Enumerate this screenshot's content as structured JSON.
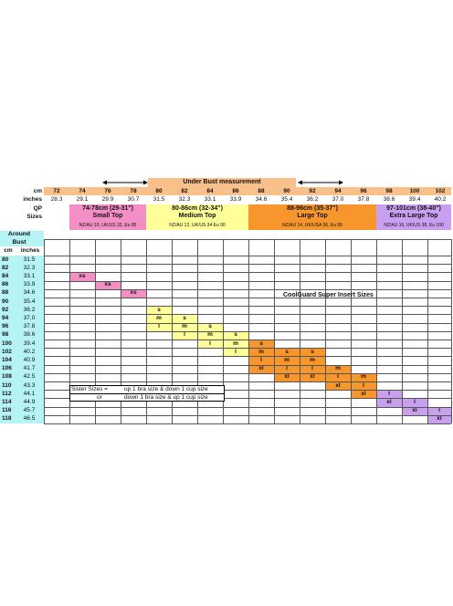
{
  "header": {
    "under_bust_title": "Under Bust measurement",
    "cm_label": "cm",
    "inches_label": "inches",
    "qp_label": "QP",
    "sizes_label": "Sizes"
  },
  "columns": {
    "cm": [
      "72",
      "74",
      "76",
      "78",
      "80",
      "82",
      "84",
      "86",
      "88",
      "90",
      "92",
      "94",
      "96",
      "98",
      "100",
      "102"
    ],
    "inches": [
      "28.3",
      "29.1",
      "29.9",
      "30.7",
      "31.5",
      "32.3",
      "33.1",
      "33.9",
      "34.6",
      "35.4",
      "36.2",
      "37.0",
      "37.8",
      "38.6",
      "39.4",
      "40.2"
    ]
  },
  "size_groups": [
    {
      "range": "74-78cm (29-31\")",
      "name": "Small Top",
      "conv": "NZ/AU 10, UK/US 32, Eu 85",
      "color": "#f48fc5"
    },
    {
      "range": "80-86cm (32-34\")",
      "name": "Medium Top",
      "conv": "NZ/AU 12, UK/US 34 Eu 90",
      "color": "#ffff99"
    },
    {
      "range": "88-96cm (35-37\")",
      "name": "Large Top",
      "conv": "NZ/AU 14, UK/USA 36, Eu 95",
      "color": "#f7962d"
    },
    {
      "range": "97-101cm (38-40\")",
      "name": "Extra Large Top",
      "conv": "NZ/AU 16, UK/US 38, Eu 100",
      "color": "#c9a0f0"
    }
  ],
  "around_bust": {
    "title": "Around Bust",
    "cm_label": "cm",
    "inches_label": "inches",
    "rows": [
      {
        "cm": "80",
        "in": "31.5"
      },
      {
        "cm": "82",
        "in": "32.3"
      },
      {
        "cm": "84",
        "in": "33.1"
      },
      {
        "cm": "86",
        "in": "33.9"
      },
      {
        "cm": "88",
        "in": "34.6"
      },
      {
        "cm": "90",
        "in": "35.4"
      },
      {
        "cm": "92",
        "in": "36.2"
      },
      {
        "cm": "94",
        "in": "37.0"
      },
      {
        "cm": "96",
        "in": "37.8"
      },
      {
        "cm": "98",
        "in": "38.6"
      },
      {
        "cm": "100",
        "in": "39.4"
      },
      {
        "cm": "102",
        "in": "40.2"
      },
      {
        "cm": "104",
        "in": "40.9"
      },
      {
        "cm": "106",
        "in": "41.7"
      },
      {
        "cm": "108",
        "in": "42.5"
      },
      {
        "cm": "110",
        "in": "43.3"
      },
      {
        "cm": "112",
        "in": "44.1"
      },
      {
        "cm": "114",
        "in": "44.9"
      },
      {
        "cm": "116",
        "in": "45.7"
      },
      {
        "cm": "118",
        "in": "46.5"
      }
    ]
  },
  "insert_title": "CoolGuard Super Insert Sizes",
  "colors": {
    "orange_header": "#f9c08a",
    "pink": "#f48fc5",
    "yellow": "#ffff99",
    "orange": "#f7962d",
    "purple": "#c9a0f0",
    "cyan": "#b6f3f5"
  },
  "cells": [
    {
      "r": 2,
      "c": 1,
      "v": "xs",
      "g": "pink"
    },
    {
      "r": 3,
      "c": 2,
      "v": "xs",
      "g": "pink"
    },
    {
      "r": 4,
      "c": 3,
      "v": "xs",
      "g": "pink"
    },
    {
      "r": 6,
      "c": 4,
      "v": "s",
      "g": "yellow"
    },
    {
      "r": 7,
      "c": 4,
      "v": "m",
      "g": "yellow"
    },
    {
      "r": 8,
      "c": 4,
      "v": "l",
      "g": "yellow"
    },
    {
      "r": 7,
      "c": 5,
      "v": "s",
      "g": "yellow"
    },
    {
      "r": 8,
      "c": 5,
      "v": "m",
      "g": "yellow"
    },
    {
      "r": 9,
      "c": 5,
      "v": "l",
      "g": "yellow"
    },
    {
      "r": 8,
      "c": 6,
      "v": "s",
      "g": "yellow"
    },
    {
      "r": 9,
      "c": 6,
      "v": "m",
      "g": "yellow"
    },
    {
      "r": 10,
      "c": 6,
      "v": "l",
      "g": "yellow"
    },
    {
      "r": 9,
      "c": 7,
      "v": "s",
      "g": "yellow"
    },
    {
      "r": 10,
      "c": 7,
      "v": "m",
      "g": "yellow"
    },
    {
      "r": 11,
      "c": 7,
      "v": "l",
      "g": "yellow"
    },
    {
      "r": 10,
      "c": 8,
      "v": "s",
      "g": "orange"
    },
    {
      "r": 11,
      "c": 8,
      "v": "m",
      "g": "orange"
    },
    {
      "r": 12,
      "c": 8,
      "v": "l",
      "g": "orange"
    },
    {
      "r": 13,
      "c": 8,
      "v": "xl",
      "g": "orange"
    },
    {
      "r": 11,
      "c": 9,
      "v": "s",
      "g": "orange"
    },
    {
      "r": 12,
      "c": 9,
      "v": "m",
      "g": "orange"
    },
    {
      "r": 13,
      "c": 9,
      "v": "l",
      "g": "orange"
    },
    {
      "r": 14,
      "c": 9,
      "v": "xl",
      "g": "orange"
    },
    {
      "r": 11,
      "c": 10,
      "v": "s",
      "g": "orange"
    },
    {
      "r": 12,
      "c": 10,
      "v": "m",
      "g": "orange"
    },
    {
      "r": 13,
      "c": 10,
      "v": "l",
      "g": "orange"
    },
    {
      "r": 14,
      "c": 10,
      "v": "xl",
      "g": "orange"
    },
    {
      "r": 13,
      "c": 11,
      "v": "m",
      "g": "orange"
    },
    {
      "r": 14,
      "c": 11,
      "v": "l",
      "g": "orange"
    },
    {
      "r": 15,
      "c": 11,
      "v": "xl",
      "g": "orange"
    },
    {
      "r": 14,
      "c": 12,
      "v": "m",
      "g": "orange"
    },
    {
      "r": 15,
      "c": 12,
      "v": "l",
      "g": "orange"
    },
    {
      "r": 16,
      "c": 12,
      "v": "xl",
      "g": "orange"
    },
    {
      "r": 16,
      "c": 13,
      "v": "l",
      "g": "purple"
    },
    {
      "r": 17,
      "c": 13,
      "v": "xl",
      "g": "purple"
    },
    {
      "r": 17,
      "c": 14,
      "v": "l",
      "g": "purple"
    },
    {
      "r": 18,
      "c": 14,
      "v": "xl",
      "g": "purple"
    },
    {
      "r": 18,
      "c": 15,
      "v": "l",
      "g": "purple"
    },
    {
      "r": 19,
      "c": 15,
      "v": "xl",
      "g": "purple"
    }
  ],
  "legend": {
    "sister_label": "Sister Sizes =",
    "rule_up": "up 1 bra size & down 1 cup size",
    "or_label": "or",
    "rule_down": "down 1 bra size & up 1 cup size"
  }
}
